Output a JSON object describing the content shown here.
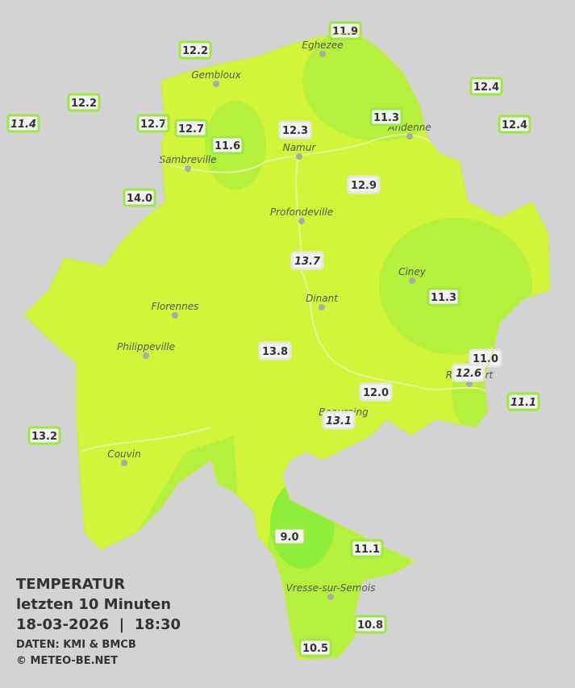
{
  "legend": {
    "title": "TEMPERATUR",
    "subtitle": "letzten 10 Minuten",
    "datetime": "18-03-2026  |  18:30",
    "source": "DATEN: KMI & BMCB",
    "credit": "© METEO-BE.NET"
  },
  "stations": [
    "11.9",
    "12.2",
    "12.4",
    "12.2",
    "11.3",
    "12.4",
    "11.4",
    "12.7",
    "12.7",
    "12.3",
    "11.6",
    "14.0",
    "12.9",
    "13.7",
    "11.3",
    "13.8",
    "11.0",
    "12.6",
    "12.0",
    "11.1",
    "13.1",
    "13.2",
    "9.0",
    "11.1",
    "10.8",
    "10.5"
  ],
  "cities": [
    "Eghezee",
    "Gembloux",
    "Andenne",
    "Namur",
    "Sambreville",
    "Profondeville",
    "Ciney",
    "Dinant",
    "Florennes",
    "Philippeville",
    "Rochefort",
    "Beauraing",
    "Couvin",
    "Vresse-sur-Semois"
  ]
}
